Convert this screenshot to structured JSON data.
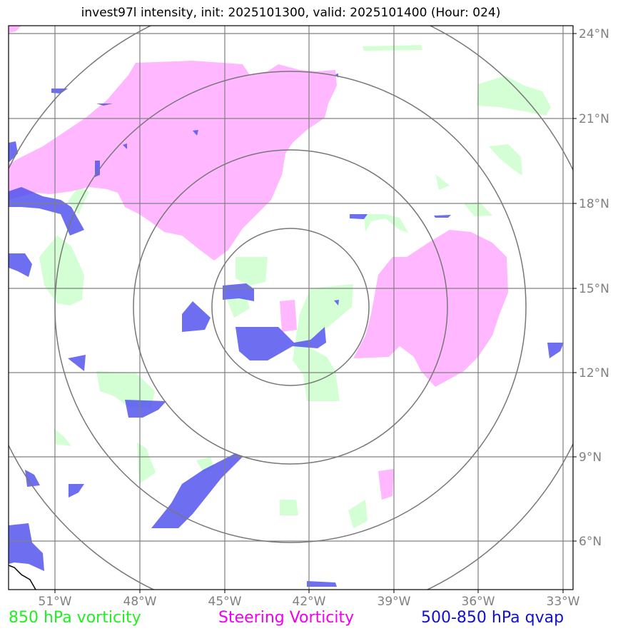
{
  "title": "invest97l intensity, init: 2025101300, valid: 2025101400 (Hour: 024)",
  "map": {
    "lat_labels": [
      "24°N",
      "21°N",
      "18°N",
      "15°N",
      "12°N",
      "9°N",
      "6°N"
    ],
    "lon_labels": [
      "51°W",
      "48°W",
      "45°W",
      "42°W",
      "39°W",
      "36°W",
      "33°W"
    ],
    "range_ring_count": 4,
    "center": "approx. 42.2°W, 14.3°N"
  },
  "legend": [
    {
      "label": "850 hPa vorticity",
      "color": "#22ee22"
    },
    {
      "label": "Steering Vorticity",
      "color": "#ee00ee"
    },
    {
      "label": "500-850 hPa qvap",
      "color": "#1111cc"
    }
  ],
  "colors": {
    "vort850_fill": "#ccffcc",
    "steering_fill": "#ffaaff",
    "qvap_fill": "#5555ee",
    "grid": "#808080",
    "rings": "#777777"
  }
}
